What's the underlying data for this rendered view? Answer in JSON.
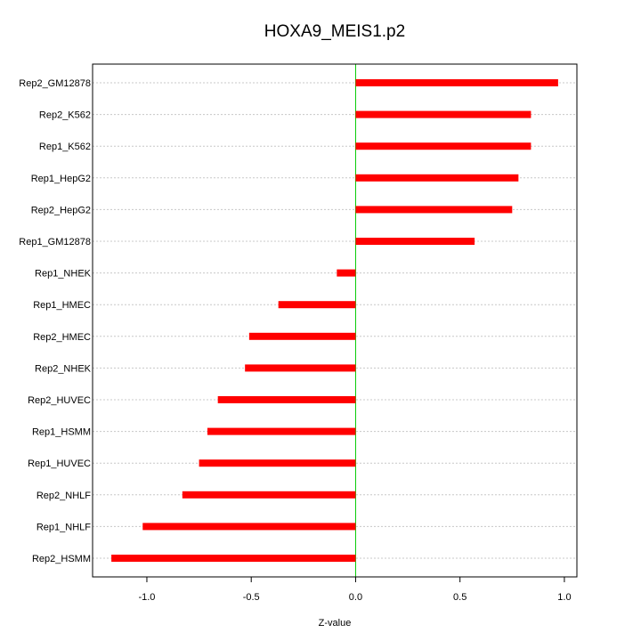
{
  "chart_data": {
    "type": "bar",
    "orientation": "horizontal",
    "title": "HOXA9_MEIS1.p2",
    "xlabel": "Z-value",
    "ylabel": "",
    "xlim": [
      -1.26,
      1.06
    ],
    "xticks": [
      -1.0,
      -0.5,
      0.0,
      0.5,
      1.0
    ],
    "xtick_labels": [
      "-1.0",
      "-0.5",
      "0.0",
      "0.5",
      "1.0"
    ],
    "grid": "horizontal dotted lines",
    "zero_line_color": "#00cc00",
    "bar_color": "#ff0000",
    "categories": [
      "Rep2_GM12878",
      "Rep2_K562",
      "Rep1_K562",
      "Rep1_HepG2",
      "Rep2_HepG2",
      "Rep1_GM12878",
      "Rep1_NHEK",
      "Rep1_HMEC",
      "Rep2_HMEC",
      "Rep2_NHEK",
      "Rep2_HUVEC",
      "Rep1_HSMM",
      "Rep1_HUVEC",
      "Rep2_NHLF",
      "Rep1_NHLF",
      "Rep2_HSMM"
    ],
    "values": [
      0.97,
      0.84,
      0.84,
      0.78,
      0.75,
      0.57,
      -0.09,
      -0.37,
      -0.51,
      -0.53,
      -0.66,
      -0.71,
      -0.75,
      -0.83,
      -1.02,
      -1.17
    ]
  }
}
